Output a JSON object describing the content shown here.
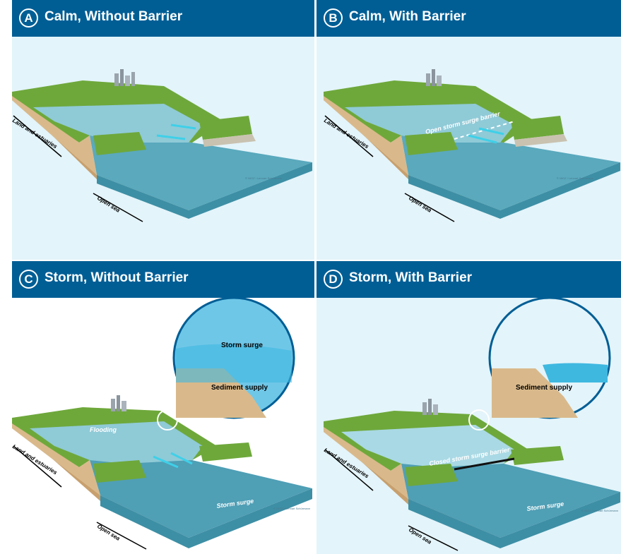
{
  "panels": [
    {
      "letter": "A",
      "title": "Calm, Without Barrier",
      "labels": {
        "land": "Land and estuaries",
        "sea": "Open sea",
        "credit": "© NIOZ / Lennart Schürmann"
      }
    },
    {
      "letter": "B",
      "title": "Calm, With Barrier",
      "labels": {
        "land": "Land and estuaries",
        "sea": "Open sea",
        "barrier": "Open storm surge barrier",
        "credit": "© NIOZ / Lennart Schürmann"
      }
    },
    {
      "letter": "C",
      "title": "Storm, Without Barrier",
      "labels": {
        "land": "Land and estuaries",
        "sea": "Open sea",
        "flooding": "Flooding",
        "surge": "Storm surge",
        "inset_surge": "Storm surge",
        "inset_sediment": "Sediment supply",
        "credit": "© NIOZ / Lennart Schürmann"
      }
    },
    {
      "letter": "D",
      "title": "Storm, With Barrier",
      "labels": {
        "land": "Land and estuaries",
        "sea": "Open sea",
        "barrier": "Closed storm surge barrier",
        "surge": "Storm surge",
        "inset_sediment": "Sediment supply",
        "credit": "© NIOZ / Lennart Schürmann"
      }
    }
  ],
  "colors": {
    "header": "#005e95",
    "background": "#e3f4fa",
    "water": "#7ec0cf",
    "water_deep": "#4f9fb5",
    "land": "#6ea83b",
    "sand": "#d9b98b",
    "arrows": "#3fd0e8"
  }
}
